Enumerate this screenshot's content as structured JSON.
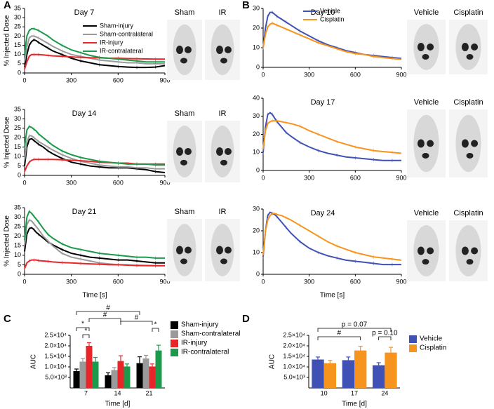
{
  "chart_data": [
    {
      "type": "line",
      "panel": "A",
      "title": "Day 7",
      "ylabel": "% Injected Dose",
      "image_labels": [
        "Sham",
        "IR"
      ],
      "legend": "right",
      "x": [
        0,
        15,
        30,
        45,
        60,
        75,
        90,
        120,
        150,
        180,
        240,
        300,
        360,
        420,
        480,
        540,
        600,
        660,
        720,
        780,
        840,
        900
      ],
      "xlim": [
        0,
        900
      ],
      "xticks": [
        0,
        300,
        600,
        900
      ],
      "ylim": [
        0,
        35
      ],
      "yticks": [
        0,
        5,
        10,
        15,
        20,
        25,
        30,
        35
      ],
      "series": [
        {
          "name": "Sham-injury",
          "color": "#000000",
          "values": [
            3,
            10,
            15,
            17,
            18,
            17.5,
            16.5,
            15,
            13.5,
            12,
            10,
            8,
            6.5,
            5.5,
            4.5,
            4,
            3.5,
            3.2,
            3,
            3,
            3.2,
            4
          ]
        },
        {
          "name": "Sham-contralateral",
          "color": "#9a9a9a",
          "values": [
            6,
            14,
            19,
            20,
            20,
            19.5,
            19,
            17.5,
            16,
            14.5,
            12,
            10,
            9,
            8,
            7,
            6.5,
            6,
            5.5,
            5.5,
            5,
            5,
            5
          ]
        },
        {
          "name": "IR-injury",
          "color": "#e8262a",
          "values": [
            2,
            6,
            9,
            10,
            10,
            10,
            10,
            9.8,
            9.5,
            9.3,
            9,
            8.7,
            8.5,
            8.3,
            8.2,
            8,
            8,
            7.8,
            7.7,
            7.6,
            7.5,
            7.5
          ]
        },
        {
          "name": "IR-contralateral",
          "color": "#1a9a4a",
          "values": [
            10,
            20,
            23,
            24,
            24,
            23.5,
            23,
            21.5,
            20,
            18,
            15,
            12.5,
            11,
            9.5,
            8.5,
            8,
            7.5,
            7,
            6.5,
            6,
            6,
            6
          ]
        }
      ]
    },
    {
      "type": "line",
      "title": "Day 14",
      "ylabel": "% Injected Dose",
      "image_labels": [
        "Sham",
        "IR"
      ],
      "x": [
        0,
        15,
        30,
        45,
        60,
        75,
        90,
        120,
        150,
        180,
        240,
        300,
        360,
        420,
        480,
        540,
        600,
        660,
        720,
        780,
        840,
        900
      ],
      "xlim": [
        0,
        900
      ],
      "xticks": [
        0,
        300,
        600,
        900
      ],
      "ylim": [
        0,
        35
      ],
      "yticks": [
        0,
        5,
        10,
        15,
        20,
        25,
        30,
        35
      ],
      "series": [
        {
          "color": "#000000",
          "values": [
            5,
            15,
            19,
            19.5,
            18.5,
            17.5,
            16.5,
            15,
            13,
            11.5,
            9,
            7,
            6,
            5,
            4.5,
            4,
            4,
            4,
            3.5,
            3,
            2,
            1.5
          ]
        },
        {
          "color": "#9a9a9a",
          "values": [
            8,
            18,
            21,
            21,
            20,
            19,
            18,
            16.5,
            15,
            13.5,
            11,
            9,
            7.5,
            6.5,
            5.5,
            5,
            4.5,
            4.5,
            4,
            4,
            3.5,
            3.5
          ]
        },
        {
          "color": "#e8262a",
          "values": [
            2,
            5,
            7,
            8,
            8.5,
            8.5,
            8.5,
            8.5,
            8.5,
            8.5,
            8.3,
            8,
            7.8,
            7.5,
            7,
            6.8,
            6.5,
            6.5,
            6,
            6,
            6,
            6
          ]
        },
        {
          "color": "#1a9a4a",
          "values": [
            15,
            24,
            26,
            25.5,
            24.5,
            23.5,
            22,
            20,
            18,
            16,
            13,
            11,
            9.5,
            8.5,
            7.5,
            7,
            6.5,
            6,
            6,
            6,
            5.5,
            5.5
          ]
        }
      ]
    },
    {
      "type": "line",
      "title": "Day 21",
      "ylabel": "% Injected Dose",
      "xlabel": "Time [s]",
      "image_labels": [
        "Sham",
        "IR"
      ],
      "x": [
        0,
        15,
        30,
        45,
        60,
        75,
        90,
        120,
        150,
        180,
        240,
        300,
        360,
        420,
        480,
        540,
        600,
        660,
        720,
        780,
        840,
        900
      ],
      "xlim": [
        0,
        900
      ],
      "xticks": [
        0,
        300,
        600,
        900
      ],
      "ylim": [
        0,
        35
      ],
      "yticks": [
        0,
        5,
        10,
        15,
        20,
        25,
        30,
        35
      ],
      "series": [
        {
          "color": "#000000",
          "values": [
            12,
            21,
            24,
            24.5,
            23.5,
            22,
            21,
            19,
            17,
            15.5,
            13,
            11,
            10,
            9,
            8.5,
            8,
            7.5,
            7.5,
            7,
            6.5,
            6,
            6
          ]
        },
        {
          "color": "#9a9a9a",
          "values": [
            15,
            26,
            28.5,
            28,
            26.5,
            25,
            23.5,
            20,
            17.5,
            15,
            11,
            9,
            8,
            7,
            6,
            5.5,
            5,
            5,
            4.5,
            4.5,
            4.5,
            4.5
          ]
        },
        {
          "color": "#e8262a",
          "values": [
            3,
            6,
            7,
            7.5,
            7.5,
            7.5,
            7.2,
            7,
            6.8,
            6.5,
            6.2,
            6,
            5.7,
            5.5,
            5.3,
            5,
            5,
            4.8,
            4.7,
            4.6,
            4.5,
            4.5
          ]
        },
        {
          "color": "#1a9a4a",
          "values": [
            18,
            30,
            33,
            32,
            30.5,
            29,
            27.5,
            24,
            21,
            19,
            16,
            14,
            13,
            12,
            11,
            10.5,
            10,
            9.5,
            9,
            9,
            8.5,
            8.5
          ]
        }
      ]
    },
    {
      "type": "line",
      "panel": "B",
      "title": "Day 10",
      "image_labels": [
        "Vehicle",
        "Cisplatin"
      ],
      "legend": "upper-right",
      "x": [
        0,
        15,
        30,
        45,
        60,
        75,
        90,
        120,
        150,
        180,
        240,
        300,
        360,
        420,
        480,
        540,
        600,
        660,
        720,
        780,
        840,
        900
      ],
      "xlim": [
        0,
        900
      ],
      "xticks": [
        0,
        300,
        600,
        900
      ],
      "ylim": [
        0,
        30
      ],
      "yticks": [
        0,
        10,
        20,
        30
      ],
      "series": [
        {
          "name": "Vehicle",
          "color": "#3f51b5",
          "values": [
            10,
            20,
            26,
            28,
            28,
            27,
            26,
            24.5,
            23,
            21.5,
            18.5,
            16,
            13.5,
            11.5,
            10,
            8.5,
            7.5,
            6.5,
            6,
            5.5,
            5,
            4.5
          ]
        },
        {
          "name": "Cisplatin",
          "color": "#f7941d",
          "values": [
            10,
            17,
            20.5,
            22,
            22.5,
            22,
            21.5,
            20.5,
            19.5,
            18.5,
            16.5,
            14.5,
            12.5,
            11,
            9.5,
            8,
            7,
            6.5,
            5.5,
            5,
            4.5,
            4
          ]
        }
      ]
    },
    {
      "type": "line",
      "title": "Day 17",
      "image_labels": [
        "Vehicle",
        "Cisplatin"
      ],
      "x": [
        0,
        15,
        30,
        45,
        60,
        75,
        90,
        120,
        150,
        180,
        240,
        300,
        360,
        420,
        480,
        540,
        600,
        660,
        720,
        780,
        840,
        900
      ],
      "xlim": [
        0,
        900
      ],
      "xticks": [
        0,
        300,
        600,
        900
      ],
      "ylim": [
        0,
        40
      ],
      "yticks": [
        0,
        10,
        20,
        30,
        40
      ],
      "series": [
        {
          "color": "#3f51b5",
          "values": [
            10,
            24,
            31,
            32,
            31,
            29,
            27,
            24,
            21,
            19,
            15.5,
            13,
            11,
            9.5,
            8.5,
            7.5,
            7,
            6.5,
            6,
            5.5,
            5.5,
            5.5
          ]
        },
        {
          "color": "#f7941d",
          "values": [
            12,
            22,
            26,
            27,
            27.5,
            27.5,
            27.5,
            27,
            26.5,
            26,
            24.5,
            22,
            20,
            18,
            16,
            14.5,
            13,
            12,
            11,
            10.5,
            10,
            9.5
          ]
        }
      ]
    },
    {
      "type": "line",
      "title": "Day 24",
      "xlabel": "Time [s]",
      "image_labels": [
        "Vehicle",
        "Cisplatin"
      ],
      "x": [
        0,
        15,
        30,
        45,
        60,
        75,
        90,
        120,
        150,
        180,
        240,
        300,
        360,
        420,
        480,
        540,
        600,
        660,
        720,
        780,
        840,
        900
      ],
      "xlim": [
        0,
        900
      ],
      "xticks": [
        0,
        300,
        600,
        900
      ],
      "ylim": [
        0,
        30
      ],
      "yticks": [
        0,
        10,
        20,
        30
      ],
      "series": [
        {
          "color": "#3f51b5",
          "values": [
            8,
            20,
            27,
            28.5,
            28,
            27.5,
            26.5,
            24,
            21.5,
            19,
            15,
            12,
            10,
            8.5,
            7.5,
            6.5,
            6,
            5.5,
            5,
            4.5,
            4.5,
            4.5
          ]
        },
        {
          "color": "#f7941d",
          "values": [
            9,
            20,
            25,
            27,
            28,
            28,
            27.5,
            27,
            26,
            25,
            22.5,
            20,
            17.5,
            15,
            13,
            11.5,
            10,
            9,
            8,
            7.5,
            7,
            6.5
          ]
        }
      ]
    },
    {
      "type": "bar",
      "panel": "C",
      "ylabel": "AUC",
      "xlabel": "Time [d]",
      "legend": "right",
      "categories": [
        "7",
        "14",
        "21"
      ],
      "ylim": [
        0,
        25000
      ],
      "yticks": [
        {
          "value": 5000,
          "label": "5.0×10³"
        },
        {
          "value": 10000,
          "label": "1.0×10⁴"
        },
        {
          "value": 15000,
          "label": "1.5×10⁴"
        },
        {
          "value": 20000,
          "label": "2.0×10⁴"
        },
        {
          "value": 25000,
          "label": "2.5×10⁴"
        }
      ],
      "series": [
        {
          "name": "Sham-injury",
          "color": "#000000",
          "values": [
            8000,
            6000,
            11800
          ],
          "errors": [
            1000,
            1200,
            3000
          ]
        },
        {
          "name": "Sham-contralateral",
          "color": "#9a9a9a",
          "values": [
            12500,
            8500,
            14000
          ],
          "errors": [
            1500,
            1200,
            1500
          ]
        },
        {
          "name": "IR-injury",
          "color": "#e8262a",
          "values": [
            20000,
            12800,
            10200
          ],
          "errors": [
            1500,
            2500,
            1200
          ]
        },
        {
          "name": "IR-contralateral",
          "color": "#1a9a4a",
          "values": [
            12500,
            10200,
            17800
          ],
          "errors": [
            2000,
            1200,
            2500
          ]
        }
      ],
      "annotations": [
        "*",
        "*",
        "#",
        "#",
        "#",
        "*"
      ]
    },
    {
      "type": "bar",
      "panel": "D",
      "ylabel": "AUC",
      "xlabel": "Time [d]",
      "legend": "right",
      "categories": [
        "10",
        "17",
        "24"
      ],
      "ylim": [
        0,
        25000
      ],
      "yticks": [
        {
          "value": 5000,
          "label": "5.0×10³"
        },
        {
          "value": 10000,
          "label": "1.0×10⁴"
        },
        {
          "value": 15000,
          "label": "1.5×10⁴"
        },
        {
          "value": 20000,
          "label": "2.0×10⁴"
        },
        {
          "value": 25000,
          "label": "2.5×10⁴"
        }
      ],
      "series": [
        {
          "name": "Vehicle",
          "color": "#3f51b5",
          "values": [
            13500,
            13200,
            10800
          ],
          "errors": [
            1200,
            1500,
            1200
          ]
        },
        {
          "name": "Cisplatin",
          "color": "#f7941d",
          "values": [
            11800,
            17800,
            16800
          ],
          "errors": [
            1300,
            2000,
            2500
          ]
        }
      ],
      "annotations": [
        "p = 0.07",
        "#",
        "p = 0.10"
      ]
    }
  ]
}
